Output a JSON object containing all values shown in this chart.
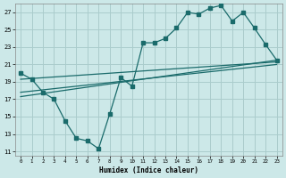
{
  "xlabel": "Humidex (Indice chaleur)",
  "bg_color": "#cce8e8",
  "grid_color": "#aacccc",
  "line_color": "#1a6b6b",
  "xlim": [
    -0.5,
    23.5
  ],
  "ylim": [
    10.5,
    28.0
  ],
  "yticks": [
    11,
    13,
    15,
    17,
    19,
    21,
    23,
    25,
    27
  ],
  "xticks": [
    0,
    1,
    2,
    3,
    4,
    5,
    6,
    7,
    8,
    9,
    10,
    11,
    12,
    13,
    14,
    15,
    16,
    17,
    18,
    19,
    20,
    21,
    22,
    23
  ],
  "series1_x": [
    0,
    1,
    2,
    3,
    4,
    5,
    6,
    7,
    8,
    9,
    10,
    11,
    12,
    13,
    14,
    15,
    16,
    17,
    18,
    19,
    20,
    21,
    22,
    23
  ],
  "series1_y": [
    20.0,
    19.3,
    17.8,
    17.0,
    14.5,
    12.5,
    12.2,
    11.3,
    15.3,
    19.5,
    18.5,
    23.5,
    23.5,
    24.0,
    25.2,
    27.0,
    26.8,
    27.5,
    27.8,
    26.0,
    27.0,
    25.2,
    23.3,
    21.5
  ],
  "series2_x": [
    0,
    23
  ],
  "series2_y": [
    19.3,
    21.3
  ],
  "series3_x": [
    0,
    23
  ],
  "series3_y": [
    17.8,
    21.0
  ],
  "series4_x": [
    0,
    23
  ],
  "series4_y": [
    17.3,
    21.5
  ]
}
